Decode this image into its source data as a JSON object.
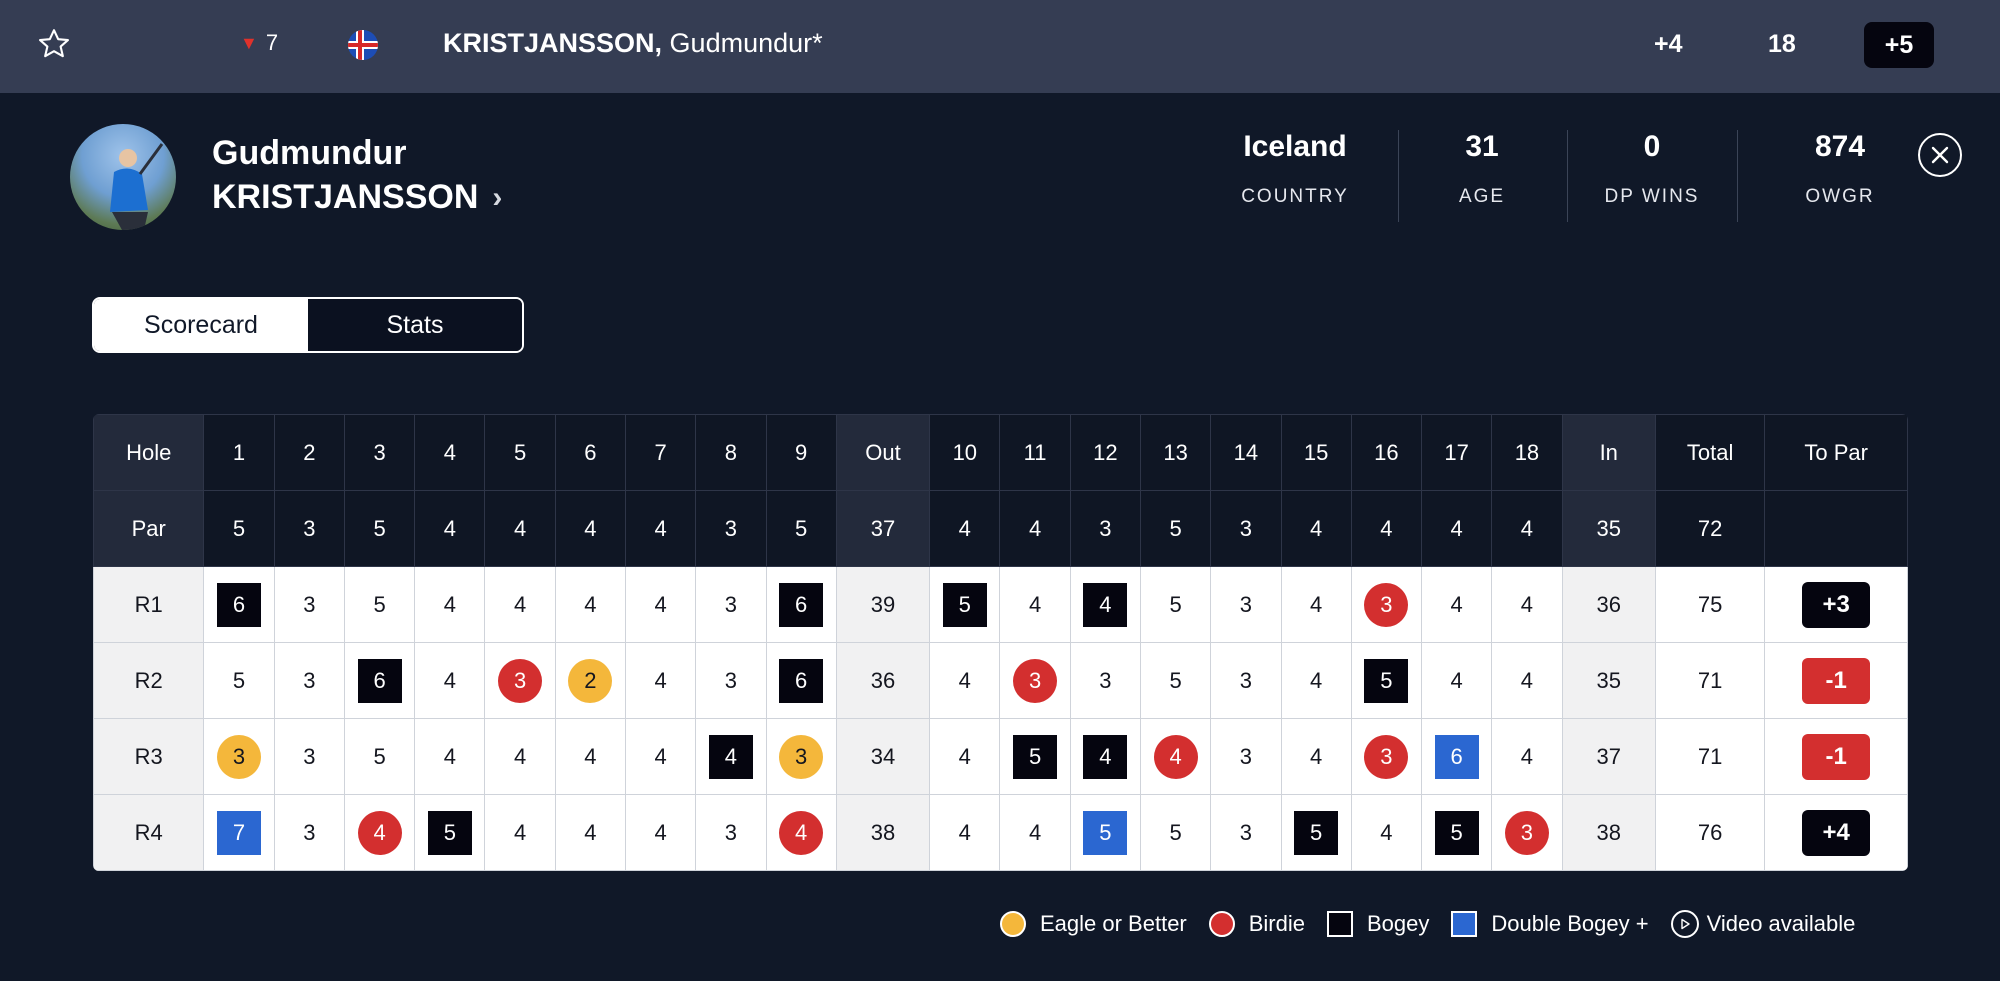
{
  "topbar": {
    "movement": "7",
    "movement_direction": "down",
    "player_last": "KRISTJANSSON,",
    "player_first": " Gudmundur*",
    "to_par": "+4",
    "thru": "18",
    "total": "+5",
    "flag_icon": "iceland-flag-icon"
  },
  "profile": {
    "first_name": "Gudmundur",
    "last_name": "KRISTJANSSON",
    "stats": [
      {
        "value": "Iceland",
        "label": "COUNTRY"
      },
      {
        "value": "31",
        "label": "AGE"
      },
      {
        "value": "0",
        "label": "DP WINS"
      },
      {
        "value": "874",
        "label": "OWGR"
      }
    ]
  },
  "tabs": [
    {
      "label": "Scorecard",
      "active": true
    },
    {
      "label": "Stats",
      "active": false
    }
  ],
  "scorecard": {
    "hole_label": "Hole",
    "par_label": "Par",
    "holes": [
      "1",
      "2",
      "3",
      "4",
      "5",
      "6",
      "7",
      "8",
      "9",
      "Out",
      "10",
      "11",
      "12",
      "13",
      "14",
      "15",
      "16",
      "17",
      "18",
      "In",
      "Total",
      "To Par"
    ],
    "par": [
      "5",
      "3",
      "5",
      "4",
      "4",
      "4",
      "4",
      "3",
      "5",
      "37",
      "4",
      "4",
      "3",
      "5",
      "3",
      "4",
      "4",
      "4",
      "4",
      "35",
      "72",
      ""
    ],
    "rounds": [
      {
        "label": "R1",
        "scores": [
          {
            "v": "6",
            "t": "bogey"
          },
          {
            "v": "3"
          },
          {
            "v": "5"
          },
          {
            "v": "4"
          },
          {
            "v": "4"
          },
          {
            "v": "4"
          },
          {
            "v": "4"
          },
          {
            "v": "3"
          },
          {
            "v": "6",
            "t": "bogey"
          },
          {
            "v": "39",
            "t": "sub"
          },
          {
            "v": "5",
            "t": "bogey"
          },
          {
            "v": "4"
          },
          {
            "v": "4",
            "t": "bogey"
          },
          {
            "v": "5"
          },
          {
            "v": "3"
          },
          {
            "v": "4"
          },
          {
            "v": "3",
            "t": "birdie"
          },
          {
            "v": "4"
          },
          {
            "v": "4"
          },
          {
            "v": "36",
            "t": "sub"
          },
          {
            "v": "75"
          }
        ],
        "to_par": "+3",
        "to_par_type": "over"
      },
      {
        "label": "R2",
        "scores": [
          {
            "v": "5"
          },
          {
            "v": "3"
          },
          {
            "v": "6",
            "t": "bogey"
          },
          {
            "v": "4"
          },
          {
            "v": "3",
            "t": "birdie"
          },
          {
            "v": "2",
            "t": "eagle"
          },
          {
            "v": "4"
          },
          {
            "v": "3"
          },
          {
            "v": "6",
            "t": "bogey"
          },
          {
            "v": "36",
            "t": "sub"
          },
          {
            "v": "4"
          },
          {
            "v": "3",
            "t": "birdie"
          },
          {
            "v": "3"
          },
          {
            "v": "5"
          },
          {
            "v": "3"
          },
          {
            "v": "4"
          },
          {
            "v": "5",
            "t": "bogey"
          },
          {
            "v": "4"
          },
          {
            "v": "4"
          },
          {
            "v": "35",
            "t": "sub"
          },
          {
            "v": "71"
          }
        ],
        "to_par": "-1",
        "to_par_type": "under"
      },
      {
        "label": "R3",
        "scores": [
          {
            "v": "3",
            "t": "eagle"
          },
          {
            "v": "3"
          },
          {
            "v": "5"
          },
          {
            "v": "4"
          },
          {
            "v": "4"
          },
          {
            "v": "4"
          },
          {
            "v": "4"
          },
          {
            "v": "4",
            "t": "bogey"
          },
          {
            "v": "3",
            "t": "eagle"
          },
          {
            "v": "34",
            "t": "sub"
          },
          {
            "v": "4"
          },
          {
            "v": "5",
            "t": "bogey"
          },
          {
            "v": "4",
            "t": "bogey"
          },
          {
            "v": "4",
            "t": "birdie"
          },
          {
            "v": "3"
          },
          {
            "v": "4"
          },
          {
            "v": "3",
            "t": "birdie"
          },
          {
            "v": "6",
            "t": "dbl"
          },
          {
            "v": "4"
          },
          {
            "v": "37",
            "t": "sub"
          },
          {
            "v": "71"
          }
        ],
        "to_par": "-1",
        "to_par_type": "under"
      },
      {
        "label": "R4",
        "scores": [
          {
            "v": "7",
            "t": "dbl"
          },
          {
            "v": "3"
          },
          {
            "v": "4",
            "t": "birdie"
          },
          {
            "v": "5",
            "t": "bogey"
          },
          {
            "v": "4"
          },
          {
            "v": "4"
          },
          {
            "v": "4"
          },
          {
            "v": "3"
          },
          {
            "v": "4",
            "t": "birdie"
          },
          {
            "v": "38",
            "t": "sub"
          },
          {
            "v": "4"
          },
          {
            "v": "4"
          },
          {
            "v": "5",
            "t": "dbl"
          },
          {
            "v": "5"
          },
          {
            "v": "3"
          },
          {
            "v": "5",
            "t": "bogey"
          },
          {
            "v": "4"
          },
          {
            "v": "5",
            "t": "bogey"
          },
          {
            "v": "3",
            "t": "birdie"
          },
          {
            "v": "38",
            "t": "sub"
          },
          {
            "v": "76"
          }
        ],
        "to_par": "+4",
        "to_par_type": "over"
      }
    ]
  },
  "legend": [
    {
      "label": "Eagle or Better",
      "type": "eagle"
    },
    {
      "label": "Birdie",
      "type": "birdie"
    },
    {
      "label": "Bogey",
      "type": "bogey"
    },
    {
      "label": "Double Bogey +",
      "type": "dbl"
    },
    {
      "label": "Video available",
      "type": "video"
    }
  ],
  "colors": {
    "background": "#101828",
    "topbar": "#353d53",
    "eagle": "#f4b73b",
    "birdie": "#d32f2f",
    "bogey": "#05050f",
    "double_bogey": "#2b67d1"
  }
}
